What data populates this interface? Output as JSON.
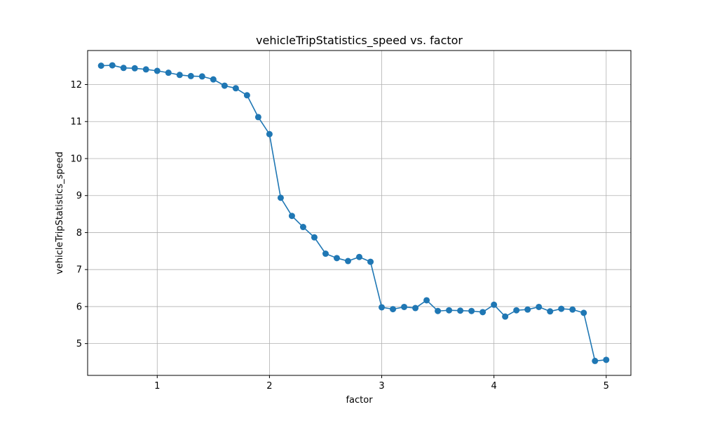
{
  "chart_data": {
    "type": "line",
    "title": "vehicleTripStatistics_speed vs. factor",
    "xlabel": "factor",
    "ylabel": "vehicleTripStatistics_speed",
    "xlim": [
      0.38,
      5.22
    ],
    "ylim": [
      4.14,
      12.92
    ],
    "xticks": [
      1,
      2,
      3,
      4,
      5
    ],
    "yticks": [
      5,
      6,
      7,
      8,
      9,
      10,
      11,
      12
    ],
    "grid": true,
    "marker": "circle",
    "color": "#1f77b4",
    "series": [
      {
        "x": [
          0.5,
          0.6,
          0.7,
          0.8,
          0.9,
          1.0,
          1.1,
          1.2,
          1.3,
          1.4,
          1.5,
          1.6,
          1.7,
          1.8,
          1.9,
          2.0,
          2.1,
          2.2,
          2.3,
          2.4,
          2.5,
          2.6,
          2.7,
          2.8,
          2.9,
          3.0,
          3.1,
          3.2,
          3.3,
          3.4,
          3.5,
          3.6,
          3.7,
          3.8,
          3.9,
          4.0,
          4.1,
          4.2,
          4.3,
          4.4,
          4.5,
          4.6,
          4.7,
          4.8,
          4.9,
          5.0
        ],
        "y": [
          12.51,
          12.52,
          12.45,
          12.44,
          12.41,
          12.37,
          12.32,
          12.26,
          12.23,
          12.22,
          12.14,
          11.97,
          11.9,
          11.71,
          11.12,
          10.66,
          8.94,
          8.45,
          8.15,
          7.87,
          7.43,
          7.31,
          7.23,
          7.34,
          7.21,
          5.98,
          5.93,
          5.99,
          5.96,
          6.17,
          5.88,
          5.9,
          5.89,
          5.88,
          5.85,
          6.05,
          5.73,
          5.9,
          5.92,
          5.99,
          5.87,
          5.94,
          5.92,
          5.83,
          4.53,
          4.56
        ]
      }
    ]
  }
}
